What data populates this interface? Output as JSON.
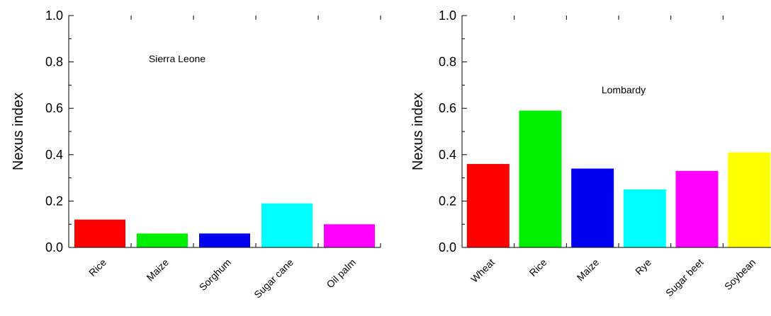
{
  "chart_data": [
    {
      "type": "bar",
      "title": "",
      "annotation": "Sierra Leone",
      "xlabel": "",
      "ylabel": "Nexus index",
      "ylim": [
        0,
        1.0
      ],
      "yticks": [
        "0.0",
        "0.2",
        "0.4",
        "0.6",
        "0.8",
        "1.0"
      ],
      "grid": false,
      "categories": [
        "Rice",
        "Maize",
        "Sorghum",
        "Sugar cane",
        "Oil palm"
      ],
      "values": [
        0.12,
        0.06,
        0.06,
        0.19,
        0.1
      ],
      "colors": [
        "#ff0000",
        "#00ee00",
        "#0000ee",
        "#00ffff",
        "#ff00ff"
      ]
    },
    {
      "type": "bar",
      "title": "",
      "annotation": "Lombardy",
      "xlabel": "",
      "ylabel": "Nexus index",
      "ylim": [
        0,
        1.0
      ],
      "yticks": [
        "0.0",
        "0.2",
        "0.4",
        "0.6",
        "0.8",
        "1.0"
      ],
      "grid": false,
      "categories": [
        "Wheat",
        "Rice",
        "Maize",
        "Rye",
        "Sugar beet",
        "Soybean"
      ],
      "values": [
        0.36,
        0.59,
        0.34,
        0.25,
        0.33,
        0.41
      ],
      "colors": [
        "#ff0000",
        "#00ee00",
        "#0000ee",
        "#00ffff",
        "#ff00ff",
        "#ffff00"
      ]
    }
  ]
}
